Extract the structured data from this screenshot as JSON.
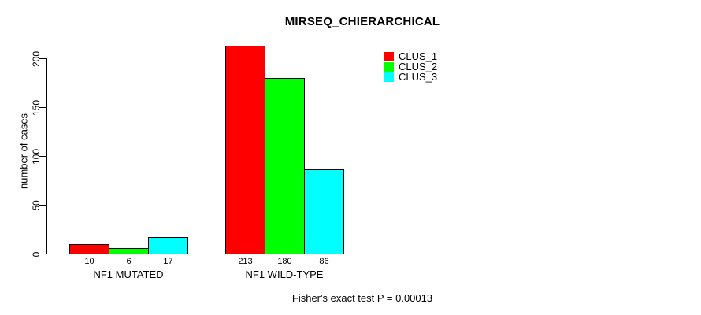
{
  "title": "MIRSEQ_CHIERARCHICAL",
  "y_axis": {
    "label": "number of cases"
  },
  "footer": "Fisher's exact test P = 0.00013",
  "chart_data": {
    "type": "bar",
    "title": "MIRSEQ_CHIERARCHICAL",
    "xlabel": "",
    "ylabel": "number of cases",
    "categories": [
      "NF1 MUTATED",
      "NF1 WILD-TYPE"
    ],
    "series": [
      {
        "name": "CLUS_1",
        "color": "#ff0000",
        "values": [
          10,
          213
        ]
      },
      {
        "name": "CLUS_2",
        "color": "#00ff00",
        "values": [
          6,
          180
        ]
      },
      {
        "name": "CLUS_3",
        "color": "#00ffff",
        "values": [
          17,
          86
        ]
      }
    ],
    "yticks": [
      0,
      50,
      100,
      150,
      200
    ],
    "ylim": [
      0,
      215
    ],
    "bar_border_color": "#000000",
    "bar_value_labels_shown": true,
    "legend_position": "top-right",
    "grid": false,
    "annotation": "Fisher's exact test P = 0.00013"
  }
}
